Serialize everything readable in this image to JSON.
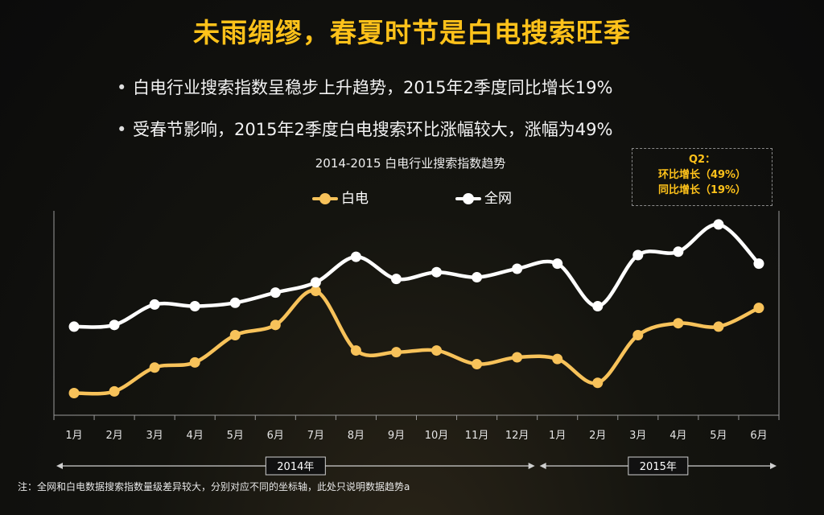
{
  "slide": {
    "title": "未雨绸缪，春夏时节是白电搜索旺季",
    "bullets": [
      "白电行业搜索指数呈稳步上升趋势，2015年2季度同比增长19%",
      "受春节影响，2015年2季度白电搜索环比涨幅较大，涨幅为49%"
    ],
    "callout": [
      "Q2：",
      "环比增长（49%）",
      "同比增长（19%）"
    ],
    "note": "注：全网和白电数据搜索指数量级差异较大，分别对应不同的坐标轴，此处只说明数据趋势a"
  },
  "colors": {
    "title": "#ffc21a",
    "baidian": "#f7c25a",
    "quanwang": "#ffffff",
    "axis": "#9a9a9a"
  },
  "chart_data": {
    "type": "line",
    "title": "2014-2015 白电行业搜索指数趋势",
    "categories": [
      "1月",
      "2月",
      "3月",
      "4月",
      "5月",
      "6月",
      "7月",
      "8月",
      "9月",
      "10月",
      "11月",
      "12月",
      "1月",
      "2月",
      "3月",
      "4月",
      "5月",
      "6月"
    ],
    "year_groups": [
      {
        "label": "2014年",
        "count": 12
      },
      {
        "label": "2015年",
        "count": 6
      }
    ],
    "series": [
      {
        "name": "白电",
        "color": "#f7c25a",
        "values": [
          13,
          14,
          28,
          31,
          47,
          53,
          73,
          38,
          37,
          38,
          30,
          34,
          33,
          19,
          47,
          54,
          52,
          63
        ]
      },
      {
        "name": "全网",
        "color": "#ffffff",
        "values": [
          52,
          53,
          65,
          64,
          66,
          72,
          78,
          93,
          80,
          84,
          81,
          86,
          89,
          64,
          94,
          96,
          112,
          89
        ]
      }
    ],
    "ylim": [
      0,
      120
    ],
    "grid": false,
    "legend_position": "top-center"
  }
}
